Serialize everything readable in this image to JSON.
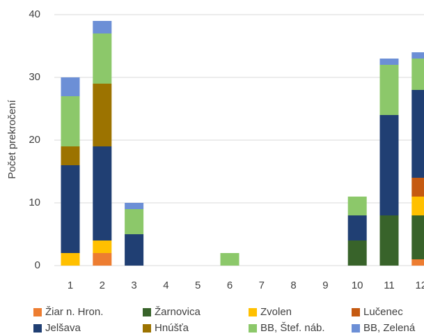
{
  "chart_data": {
    "type": "stacked_bar",
    "y_label": "Počet prekročení",
    "categories": [
      "1",
      "2",
      "3",
      "4",
      "5",
      "6",
      "7",
      "8",
      "9",
      "10",
      "11",
      "12"
    ],
    "series": [
      {
        "name": "Žiar n. Hron.",
        "color": "#ED7D31",
        "values": [
          0,
          2,
          0,
          0,
          0,
          0,
          0,
          0,
          0,
          0,
          0,
          1
        ]
      },
      {
        "name": "Žarnovica",
        "color": "#38632A",
        "values": [
          0,
          0,
          0,
          0,
          0,
          0,
          0,
          0,
          0,
          4,
          8,
          7
        ]
      },
      {
        "name": "Zvolen",
        "color": "#FFC000",
        "values": [
          2,
          2,
          0,
          0,
          0,
          0,
          0,
          0,
          0,
          0,
          0,
          3
        ]
      },
      {
        "name": "Lučenec",
        "color": "#C55A11",
        "values": [
          0,
          0,
          0,
          0,
          0,
          0,
          0,
          0,
          0,
          0,
          0,
          3
        ]
      },
      {
        "name": "Jelšava",
        "color": "#203F73",
        "values": [
          14,
          15,
          5,
          0,
          0,
          0,
          0,
          0,
          0,
          4,
          16,
          14
        ]
      },
      {
        "name": "Hnúšťa",
        "color": "#9C7300",
        "values": [
          3,
          10,
          0,
          0,
          0,
          0,
          0,
          0,
          0,
          0,
          0,
          0
        ]
      },
      {
        "name": "BB, Štef. náb.",
        "color": "#8CC86A",
        "values": [
          8,
          8,
          4,
          0,
          0,
          2,
          0,
          0,
          0,
          3,
          8,
          5
        ]
      },
      {
        "name": "BB, Zelená",
        "color": "#6C8FD6",
        "values": [
          3,
          2,
          1,
          0,
          0,
          0,
          0,
          0,
          0,
          0,
          1,
          1
        ]
      }
    ],
    "ylim": [
      0,
      40
    ],
    "yticks": [
      0,
      10,
      20,
      30,
      40
    ],
    "grid": true
  }
}
